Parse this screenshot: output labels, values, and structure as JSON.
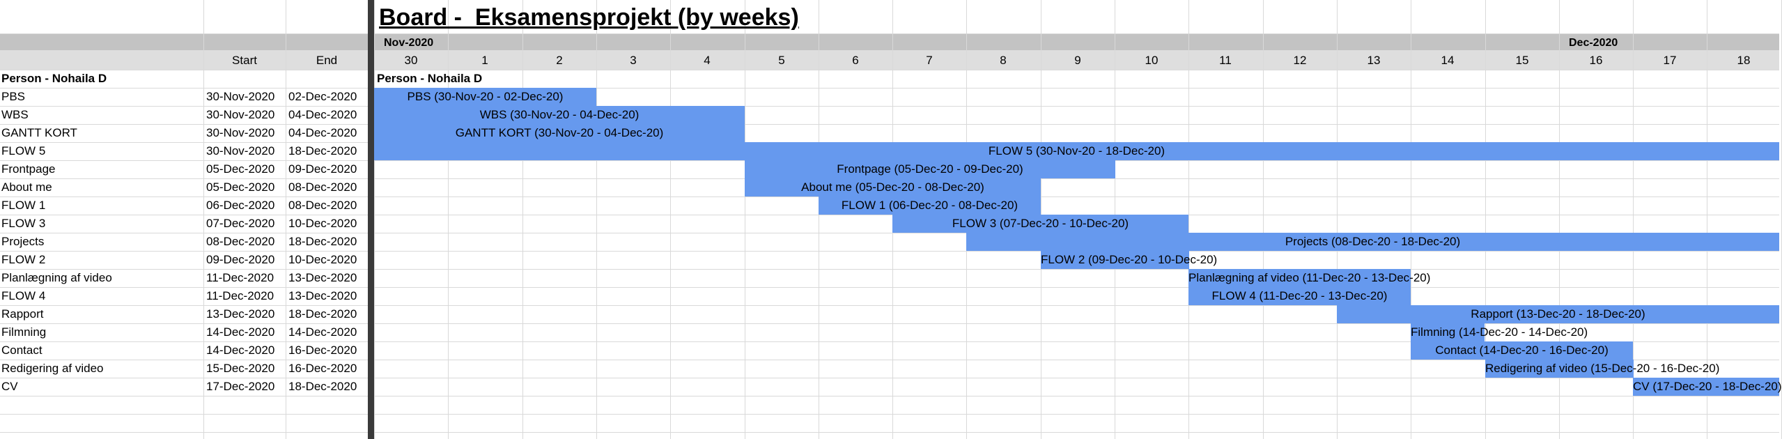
{
  "title": "Board -  Eksamensprojekt (by weeks)",
  "columns": {
    "start_header": "Start",
    "end_header": "End"
  },
  "months": [
    {
      "label": "Nov-2020",
      "day_index": 0
    },
    {
      "label": "Dec-2020",
      "day_index": 16
    }
  ],
  "days": [
    "30",
    "1",
    "2",
    "3",
    "4",
    "5",
    "6",
    "7",
    "8",
    "9",
    "10",
    "11",
    "12",
    "13",
    "14",
    "15",
    "16",
    "17",
    "18"
  ],
  "person_label": "Person - Nohaila D",
  "bar_color": "#6699ee",
  "tasks": [
    {
      "name": "PBS",
      "start": "30-Nov-2020",
      "end": "02-Dec-2020",
      "bar": "PBS (30-Nov-20 - 02-Dec-20)",
      "s": 0,
      "e": 2
    },
    {
      "name": "WBS",
      "start": "30-Nov-2020",
      "end": "04-Dec-2020",
      "bar": "WBS (30-Nov-20 - 04-Dec-20)",
      "s": 0,
      "e": 4
    },
    {
      "name": "GANTT KORT",
      "start": "30-Nov-2020",
      "end": "04-Dec-2020",
      "bar": "GANTT KORT (30-Nov-20 - 04-Dec-20)",
      "s": 0,
      "e": 4
    },
    {
      "name": "FLOW 5",
      "start": "30-Nov-2020",
      "end": "18-Dec-2020",
      "bar": "FLOW 5 (30-Nov-20 - 18-Dec-20)",
      "s": 0,
      "e": 18
    },
    {
      "name": "Frontpage",
      "start": "05-Dec-2020",
      "end": "09-Dec-2020",
      "bar": "Frontpage (05-Dec-20 - 09-Dec-20)",
      "s": 5,
      "e": 9
    },
    {
      "name": "About me",
      "start": "05-Dec-2020",
      "end": "08-Dec-2020",
      "bar": "About me (05-Dec-20 - 08-Dec-20)",
      "s": 5,
      "e": 8
    },
    {
      "name": "FLOW 1",
      "start": "06-Dec-2020",
      "end": "08-Dec-2020",
      "bar": "FLOW 1 (06-Dec-20 - 08-Dec-20)",
      "s": 6,
      "e": 8
    },
    {
      "name": "FLOW 3",
      "start": "07-Dec-2020",
      "end": "10-Dec-2020",
      "bar": "FLOW 3 (07-Dec-20 - 10-Dec-20)",
      "s": 7,
      "e": 10
    },
    {
      "name": "Projects",
      "start": "08-Dec-2020",
      "end": "18-Dec-2020",
      "bar": "Projects (08-Dec-20 - 18-Dec-20)",
      "s": 8,
      "e": 18
    },
    {
      "name": "FLOW 2",
      "start": "09-Dec-2020",
      "end": "10-Dec-2020",
      "bar": "FLOW 2 (09-Dec-20 - 10-Dec-20)",
      "s": 9,
      "e": 10
    },
    {
      "name": "Planlægning af video",
      "start": "11-Dec-2020",
      "end": "13-Dec-2020",
      "bar": "Planlægning af video (11-Dec-20 - 13-Dec-20)",
      "s": 11,
      "e": 13
    },
    {
      "name": "FLOW 4",
      "start": "11-Dec-2020",
      "end": "13-Dec-2020",
      "bar": "FLOW 4 (11-Dec-20 - 13-Dec-20)",
      "s": 11,
      "e": 13
    },
    {
      "name": "Rapport",
      "start": "13-Dec-2020",
      "end": "18-Dec-2020",
      "bar": "Rapport (13-Dec-20 - 18-Dec-20)",
      "s": 13,
      "e": 18
    },
    {
      "name": "Filmning",
      "start": "14-Dec-2020",
      "end": "14-Dec-2020",
      "bar": "Filmning (14-Dec-20 - 14-Dec-20)",
      "s": 14,
      "e": 14
    },
    {
      "name": "Contact",
      "start": "14-Dec-2020",
      "end": "16-Dec-2020",
      "bar": "Contact (14-Dec-20 - 16-Dec-20)",
      "s": 14,
      "e": 16
    },
    {
      "name": "Redigering af video",
      "start": "15-Dec-2020",
      "end": "16-Dec-2020",
      "bar": "Redigering af video (15-Dec-20 - 16-Dec-20)",
      "s": 15,
      "e": 16
    },
    {
      "name": "CV",
      "start": "17-Dec-2020",
      "end": "18-Dec-2020",
      "bar": "CV (17-Dec-20 - 18-Dec-20)",
      "s": 17,
      "e": 18
    }
  ]
}
